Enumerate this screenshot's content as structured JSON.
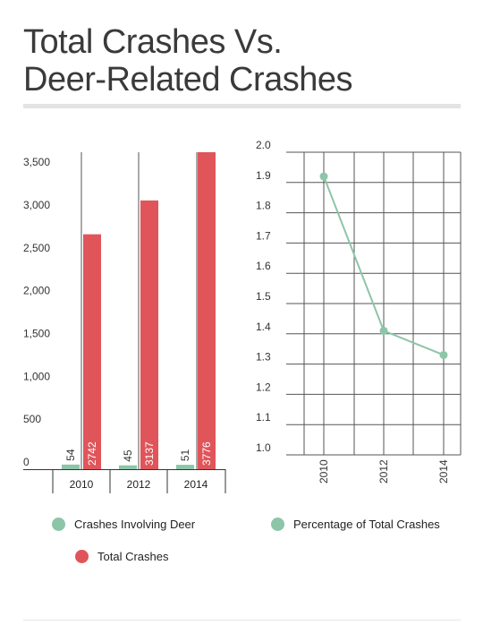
{
  "title_lines": [
    "Total Crashes Vs.",
    "Deer-Related Crashes"
  ],
  "colors": {
    "deer": "#8cc5a8",
    "total": "#e0555a",
    "line": "#8cc5a8",
    "grid": "#555555",
    "axis": "#333333"
  },
  "legend": {
    "deer": "Crashes Involving Deer",
    "total": "Total Crashes",
    "percentage": "Percentage of Total Crashes"
  },
  "chart_data": [
    {
      "type": "bar",
      "categories": [
        "2010",
        "2012",
        "2014"
      ],
      "series": [
        {
          "name": "Crashes Involving Deer",
          "values": [
            54,
            45,
            51
          ]
        },
        {
          "name": "Total Crashes",
          "values": [
            2742,
            3137,
            3776
          ]
        }
      ],
      "ylim": [
        0,
        3700
      ],
      "yticks": [
        0,
        500,
        1000,
        1500,
        2000,
        2500,
        3000,
        3500
      ],
      "ytick_labels": [
        "0",
        "500",
        "1,000",
        "1,500",
        "2,000",
        "2,500",
        "3,000",
        "3,500"
      ],
      "data_labels": true,
      "legend_position": "bottom"
    },
    {
      "type": "line",
      "x": [
        "2010",
        "2012",
        "2014"
      ],
      "series": [
        {
          "name": "Percentage of Total Crashes",
          "values": [
            1.92,
            1.41,
            1.33
          ]
        }
      ],
      "ylim": [
        1.0,
        2.0
      ],
      "yticks": [
        1.0,
        1.1,
        1.2,
        1.3,
        1.4,
        1.5,
        1.6,
        1.7,
        1.8,
        1.9,
        2.0
      ],
      "ytick_labels": [
        "1.0",
        "1.1",
        "1.2",
        "1.3",
        "1.4",
        "1.5",
        "1.6",
        "1.7",
        "1.8",
        "1.9",
        "2.0"
      ],
      "grid": true,
      "legend_position": "bottom"
    }
  ]
}
